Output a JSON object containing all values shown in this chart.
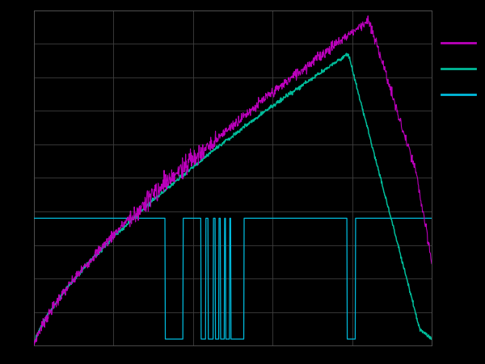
{
  "background_color": "#000000",
  "grid_color": "#404040",
  "figure_bg": "#000000",
  "axes_bg": "#000000",
  "line1_color": "#bb00bb",
  "line2_color": "#00bb99",
  "line3_color": "#00bbdd",
  "legend_colors": [
    "#bb00bb",
    "#00bb99",
    "#00bbdd"
  ],
  "N": 1000,
  "grid_nx": 5,
  "grid_ny": 10
}
